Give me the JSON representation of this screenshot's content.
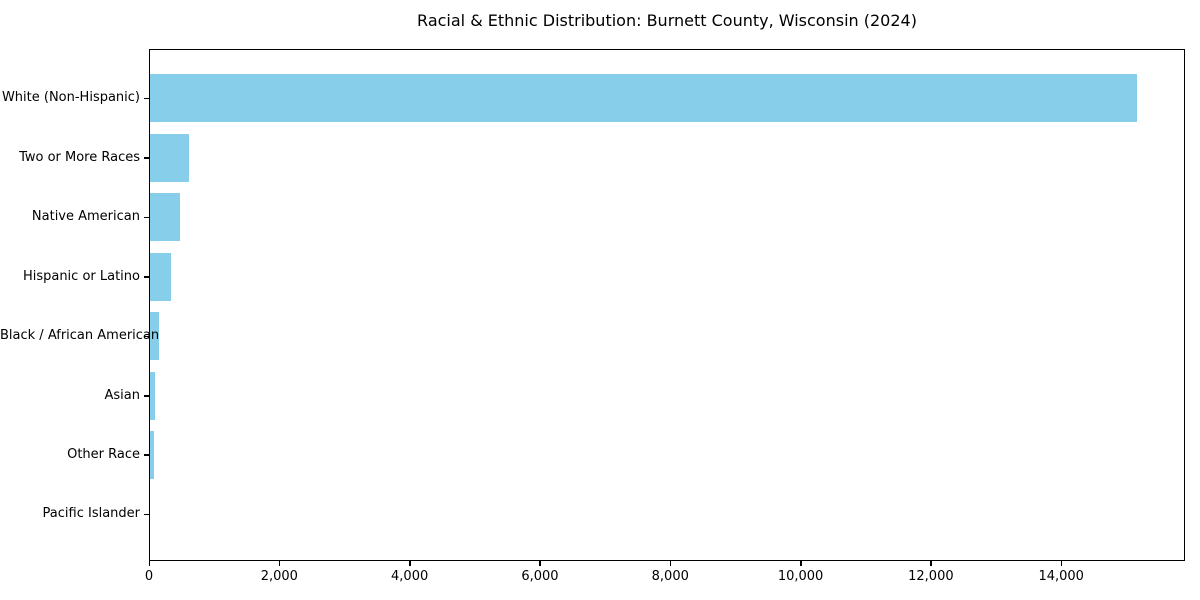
{
  "chart_data": {
    "type": "bar",
    "orientation": "horizontal",
    "title": "Racial & Ethnic Distribution: Burnett County, Wisconsin (2024)",
    "categories": [
      "White (Non-Hispanic)",
      "Two or More Races",
      "Native American",
      "Hispanic or Latino",
      "Black / African American",
      "Asian",
      "Other Race",
      "Pacific Islander"
    ],
    "values": [
      15160,
      620,
      470,
      330,
      150,
      90,
      75,
      5
    ],
    "xlabel": "",
    "ylabel": "",
    "xlim": [
      0,
      15900
    ],
    "xticks": [
      0,
      2000,
      4000,
      6000,
      8000,
      10000,
      12000,
      14000
    ],
    "xtick_labels": [
      "0",
      "2,000",
      "4,000",
      "6,000",
      "8,000",
      "10,000",
      "12,000",
      "14,000"
    ],
    "bar_color": "#87CEEB",
    "text_color": "#000000",
    "background_color": "#ffffff",
    "grid": false,
    "legend_position": "none"
  }
}
